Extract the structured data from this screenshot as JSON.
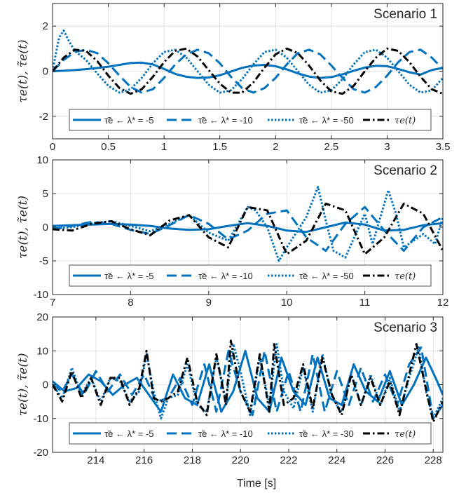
{
  "colors": {
    "series": "#0072BD",
    "actual": "#000000",
    "grid": "#dcdcdc",
    "axis": "#262626"
  },
  "xlabel": "Time [s]",
  "chart_data": [
    {
      "type": "line",
      "title": "Scenario 1",
      "ylabel": "τe(t), τ̃e(t)",
      "xlim": [
        0,
        3.5
      ],
      "ylim": [
        -3,
        3
      ],
      "xticks": [
        0,
        0.5,
        1,
        1.5,
        2,
        2.5,
        3,
        3.5
      ],
      "xtick_labels": [
        "0",
        "0.5",
        "1",
        "1.5",
        "2",
        "2.5",
        "3",
        "3.5"
      ],
      "yticks": [
        -2,
        0,
        2
      ],
      "ytick_labels": [
        "-2",
        "0",
        "2"
      ],
      "legend": {
        "placement": "bottom",
        "entries": [
          "τ̃e ← λ* = -5",
          "τ̃e ← λ* = -10",
          "τ̃e ← λ* = -50",
          "τe(t)"
        ]
      },
      "series": [
        {
          "name": "τ̃e ← λ* = -5",
          "style": "solid",
          "x": [
            0,
            0.1,
            0.2,
            0.3,
            0.4,
            0.5,
            0.6,
            0.7,
            0.8,
            0.9,
            1.0,
            1.1,
            1.2,
            1.3,
            1.4,
            1.5,
            1.6,
            1.7,
            1.8,
            1.9,
            2.0,
            2.1,
            2.2,
            2.3,
            2.4,
            2.5,
            2.6,
            2.7,
            2.8,
            2.9,
            3.0,
            3.1,
            3.2,
            3.3,
            3.4,
            3.5
          ],
          "y": [
            0,
            0.02,
            0.05,
            0.09,
            0.14,
            0.2,
            0.28,
            0.36,
            0.38,
            0.3,
            0.1,
            -0.12,
            -0.25,
            -0.3,
            -0.28,
            -0.18,
            -0.02,
            0.15,
            0.25,
            0.28,
            0.22,
            0.08,
            -0.1,
            -0.24,
            -0.3,
            -0.26,
            -0.14,
            0.02,
            0.16,
            0.24,
            0.22,
            0.1,
            -0.05,
            -0.15,
            0.05,
            0.15
          ]
        },
        {
          "name": "τ̃e ← λ* = -10",
          "style": "dashed",
          "x": [
            0,
            0.1,
            0.2,
            0.3,
            0.4,
            0.5,
            0.6,
            0.7,
            0.8,
            0.9,
            1.0,
            1.1,
            1.2,
            1.3,
            1.4,
            1.5,
            1.6,
            1.7,
            1.8,
            1.9,
            2.0,
            2.1,
            2.2,
            2.3,
            2.4,
            2.5,
            2.6,
            2.7,
            2.8,
            2.9,
            3.0,
            3.1,
            3.2,
            3.3,
            3.4,
            3.5
          ],
          "y": [
            0,
            0.5,
            0.85,
            0.95,
            0.8,
            0.35,
            -0.2,
            -0.7,
            -0.95,
            -0.8,
            -0.3,
            0.3,
            0.75,
            0.95,
            0.8,
            0.35,
            -0.25,
            -0.75,
            -0.95,
            -0.75,
            -0.3,
            0.3,
            0.8,
            0.95,
            0.75,
            0.25,
            -0.3,
            -0.8,
            -0.95,
            -0.7,
            -0.2,
            0.4,
            0.85,
            0.95,
            0.6,
            0.1
          ]
        },
        {
          "name": "τ̃e ← λ* = -50",
          "style": "dotted",
          "x": [
            0,
            0.03,
            0.06,
            0.1,
            0.15,
            0.2,
            0.3,
            0.4,
            0.5,
            0.6,
            0.7,
            0.8,
            0.9,
            1.0,
            1.1,
            1.2,
            1.3,
            1.4,
            1.5,
            1.6,
            1.7,
            1.8,
            1.9,
            2.0,
            2.1,
            2.2,
            2.3,
            2.4,
            2.5,
            2.6,
            2.7,
            2.8,
            2.9,
            3.0,
            3.1,
            3.2,
            3.3,
            3.4,
            3.5
          ],
          "y": [
            0,
            0.8,
            1.5,
            1.8,
            1.3,
            0.9,
            0.5,
            -0.1,
            -0.65,
            -0.95,
            -0.8,
            -0.3,
            0.35,
            0.85,
            0.95,
            0.6,
            0.0,
            -0.6,
            -0.95,
            -0.85,
            -0.35,
            0.3,
            0.85,
            0.95,
            0.6,
            0.0,
            -0.6,
            -0.95,
            -0.85,
            -0.35,
            0.3,
            0.85,
            0.95,
            0.6,
            0.0,
            -0.6,
            -0.95,
            -0.85,
            -0.3
          ]
        },
        {
          "name": "τe(t)",
          "style": "dashdot",
          "x": [
            0,
            0.1,
            0.2,
            0.3,
            0.4,
            0.5,
            0.6,
            0.7,
            0.8,
            0.9,
            1.0,
            1.1,
            1.2,
            1.3,
            1.4,
            1.5,
            1.6,
            1.7,
            1.8,
            1.9,
            2.0,
            2.1,
            2.2,
            2.3,
            2.4,
            2.5,
            2.6,
            2.7,
            2.8,
            2.9,
            3.0,
            3.1,
            3.2,
            3.3,
            3.4,
            3.5
          ],
          "y": [
            0,
            0.6,
            0.95,
            0.9,
            0.45,
            -0.2,
            -0.75,
            -1.0,
            -0.8,
            -0.25,
            0.4,
            0.9,
            1.0,
            0.65,
            0.05,
            -0.55,
            -0.95,
            -0.95,
            -0.5,
            0.15,
            0.75,
            1.0,
            0.8,
            0.25,
            -0.4,
            -0.9,
            -1.0,
            -0.65,
            0.0,
            0.6,
            1.0,
            0.9,
            0.4,
            -0.25,
            -0.8,
            -1.0
          ]
        }
      ]
    },
    {
      "type": "line",
      "title": "Scenario 2",
      "ylabel": "τe(t), τ̃e(t)",
      "xlim": [
        7,
        12
      ],
      "ylim": [
        -10,
        10
      ],
      "xticks": [
        7,
        8,
        9,
        10,
        11,
        12
      ],
      "xtick_labels": [
        "7",
        "8",
        "9",
        "10",
        "11",
        "12"
      ],
      "yticks": [
        -10,
        -5,
        0,
        5,
        10
      ],
      "ytick_labels": [
        "-10",
        "-5",
        "0",
        "5",
        "10"
      ],
      "legend": {
        "placement": "bottom",
        "entries": [
          "τ̃e ← λ* = -5",
          "τ̃e ← λ* = -10",
          "τ̃e ← λ* = -50",
          "τe(t)"
        ]
      },
      "series": [
        {
          "name": "τ̃e ← λ* = -5",
          "style": "solid",
          "x": [
            7,
            7.25,
            7.5,
            7.75,
            8,
            8.25,
            8.5,
            8.75,
            9,
            9.25,
            9.5,
            9.75,
            10,
            10.25,
            10.5,
            10.75,
            11,
            11.25,
            11.5,
            11.75,
            12
          ],
          "y": [
            0.2,
            0.3,
            0.4,
            0.5,
            0.4,
            0.2,
            -0.2,
            -0.4,
            -0.3,
            0.2,
            0.6,
            0.2,
            -0.5,
            -0.7,
            0.0,
            0.7,
            0.4,
            -0.5,
            -0.4,
            0.3,
            0.6
          ]
        },
        {
          "name": "τ̃e ← λ* = -10",
          "style": "dashed",
          "x": [
            7,
            7.25,
            7.5,
            7.75,
            8,
            8.25,
            8.5,
            8.75,
            9,
            9.25,
            9.5,
            9.75,
            10,
            10.25,
            10.5,
            10.75,
            11,
            11.25,
            11.5,
            11.75,
            12
          ],
          "y": [
            -0.3,
            0.2,
            0.8,
            0.5,
            -0.4,
            -1.0,
            0.3,
            1.8,
            0.5,
            -1.8,
            -0.5,
            2.0,
            2.5,
            -1.5,
            -3.5,
            0.5,
            3.0,
            -0.5,
            -3.5,
            0.0,
            1.5
          ]
        },
        {
          "name": "τ̃e ← λ* = -50",
          "style": "dotted",
          "x": [
            7,
            7.25,
            7.5,
            7.75,
            8,
            8.25,
            8.5,
            8.75,
            9,
            9.25,
            9.5,
            9.6,
            9.75,
            9.9,
            10,
            10.25,
            10.4,
            10.5,
            10.6,
            10.75,
            11,
            11.1,
            11.3,
            11.4,
            11.5,
            11.75,
            11.9,
            12
          ],
          "y": [
            -0.2,
            0.0,
            0.6,
            0.9,
            0.2,
            -0.6,
            0.5,
            1.8,
            -0.8,
            -2.0,
            3.0,
            2.5,
            0.0,
            -5.0,
            -3.0,
            1.5,
            6.0,
            1.0,
            -3.5,
            -4.5,
            2.0,
            -2.5,
            5.5,
            2.0,
            -3.0,
            -1.0,
            -2.5,
            1.5
          ]
        },
        {
          "name": "τe(t)",
          "style": "dashdot",
          "x": [
            7,
            7.25,
            7.5,
            7.75,
            8,
            8.25,
            8.5,
            8.75,
            9,
            9.25,
            9.5,
            9.75,
            10,
            10.25,
            10.5,
            10.75,
            11,
            11.25,
            11.5,
            11.75,
            12
          ],
          "y": [
            -0.3,
            -0.5,
            0.5,
            0.9,
            -0.3,
            -1.2,
            1.0,
            1.8,
            -1.5,
            -3.0,
            3.0,
            2.5,
            -4.0,
            -2.0,
            3.5,
            2.5,
            -4.0,
            -1.5,
            3.5,
            2.0,
            -3.5
          ]
        }
      ]
    },
    {
      "type": "line",
      "title": "Scenario 3",
      "ylabel": "τe(t), τ̃e(t)",
      "xlim": [
        212.2,
        228.4
      ],
      "ylim": [
        -20,
        20
      ],
      "xticks": [
        214,
        216,
        218,
        220,
        222,
        224,
        226,
        228
      ],
      "xtick_labels": [
        "214",
        "216",
        "218",
        "220",
        "222",
        "224",
        "226",
        "228"
      ],
      "yticks": [
        -20,
        -10,
        0,
        10,
        20
      ],
      "ytick_labels": [
        "-20",
        "-10",
        "0",
        "10",
        "20"
      ],
      "legend": {
        "placement": "bottom",
        "entries": [
          "τ̃e ← λ* = -5",
          "τ̃e ← λ* = -10",
          "τ̃e ← λ* = -30",
          "τe(t)"
        ]
      },
      "series": [
        {
          "name": "τ̃e ← λ* = -5",
          "style": "solid",
          "x": [
            212.2,
            212.7,
            213.2,
            213.7,
            214.2,
            214.7,
            215.2,
            215.7,
            216.2,
            216.7,
            217.2,
            217.7,
            218.2,
            218.7,
            219.2,
            219.7,
            220.2,
            220.7,
            221.2,
            221.7,
            222.2,
            222.7,
            223.2,
            223.7,
            224.2,
            224.7,
            225.2,
            225.7,
            226.2,
            226.7,
            227.2,
            227.7,
            228.1,
            228.4
          ],
          "y": [
            1,
            -2,
            -1,
            3,
            1,
            -3,
            0,
            2,
            -3,
            -8,
            3,
            -4,
            -6,
            6,
            -8,
            -2,
            10,
            -4,
            -8,
            8,
            -2,
            -6,
            8,
            -4,
            -6,
            6,
            -2,
            -5,
            4,
            -6,
            0,
            8,
            2,
            -3
          ]
        },
        {
          "name": "τ̃e ← λ* = -10",
          "style": "dashed",
          "x": [
            212.2,
            212.6,
            213.0,
            213.5,
            214.0,
            214.5,
            215.0,
            215.5,
            216.0,
            216.5,
            217.0,
            217.5,
            218.0,
            218.5,
            219.0,
            219.5,
            220.0,
            220.5,
            221.0,
            221.5,
            222.0,
            222.5,
            223.0,
            223.5,
            224.0,
            224.5,
            225.0,
            225.5,
            226.0,
            226.5,
            227.0,
            227.5,
            228.0,
            228.4
          ],
          "y": [
            0,
            -2,
            3,
            -3,
            4,
            -2,
            3,
            -3,
            3,
            -5,
            -4,
            2,
            -6,
            6,
            -8,
            10,
            -2,
            -9,
            10,
            -8,
            4,
            -8,
            9,
            -8,
            4,
            -6,
            5,
            -5,
            3,
            -6,
            6,
            11,
            -10,
            -6
          ]
        },
        {
          "name": "τ̃e ← λ* = -30",
          "style": "dotted",
          "x": [
            212.2,
            212.6,
            213.0,
            213.4,
            213.8,
            214.2,
            214.6,
            215.0,
            215.4,
            215.8,
            216.1,
            216.4,
            216.7,
            217.0,
            217.4,
            217.8,
            218.2,
            218.6,
            219.0,
            219.4,
            219.7,
            220.0,
            220.4,
            220.8,
            221.2,
            221.5,
            221.8,
            222.2,
            222.6,
            223.0,
            223.4,
            223.8,
            224.2,
            224.6,
            225.0,
            225.4,
            225.8,
            226.2,
            226.6,
            227.0,
            227.4,
            227.7,
            228.0,
            228.4
          ],
          "y": [
            0,
            -4,
            5,
            -3,
            2,
            -5,
            2,
            1,
            -5,
            -2,
            9,
            -2,
            -10,
            -4,
            -3,
            6,
            -6,
            -8,
            8,
            -5,
            12,
            4,
            -9,
            8,
            -6,
            12,
            -2,
            -7,
            5,
            -8,
            9,
            -4,
            -8,
            3,
            -6,
            3,
            -6,
            2,
            -8,
            2,
            11,
            -2,
            -10,
            -4
          ]
        },
        {
          "name": "τe(t)",
          "style": "dashdot",
          "x": [
            212.2,
            212.6,
            213.0,
            213.4,
            213.8,
            214.2,
            214.6,
            215.0,
            215.4,
            215.8,
            216.1,
            216.4,
            216.7,
            217.0,
            217.4,
            217.8,
            218.2,
            218.6,
            219.0,
            219.4,
            219.6,
            220.0,
            220.4,
            220.8,
            221.2,
            221.4,
            221.8,
            222.2,
            222.6,
            223.0,
            223.4,
            223.8,
            224.2,
            224.6,
            225.0,
            225.4,
            225.8,
            226.2,
            226.6,
            227.0,
            227.3,
            227.6,
            228.0,
            228.4
          ],
          "y": [
            0,
            -5,
            4,
            -4,
            2,
            -6,
            2,
            2,
            -6,
            -1,
            10,
            -4,
            -5,
            -4,
            -2,
            8,
            -5,
            -9,
            9,
            -6,
            13,
            -2,
            -8,
            9,
            -8,
            12,
            -6,
            -4,
            6,
            -7,
            8,
            -3,
            -9,
            3,
            -6,
            2,
            -6,
            1,
            -9,
            3,
            12,
            2,
            -11,
            -5
          ]
        }
      ]
    }
  ]
}
